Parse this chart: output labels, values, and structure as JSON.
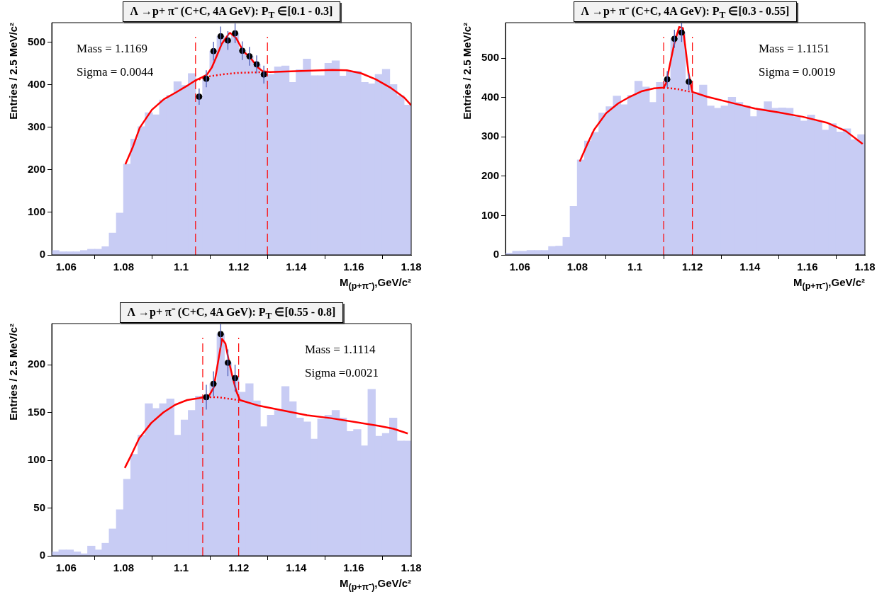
{
  "chart_data": [
    {
      "type": "histogram",
      "title": "Λ →p+  π⁻ (C+C, 4A GeV):  P$_{T}$ ∈[0.1 - 0.3]",
      "xlabel": "M$_{(p+π⁻)}$,GeV/c²",
      "ylabel": "Entries / 2.5 MeV/c²",
      "bins": [
        1.055,
        1.0575,
        1.06,
        1.0625,
        1.065,
        1.0675,
        1.07,
        1.0725,
        1.075,
        1.0775,
        1.08,
        1.0825,
        1.085,
        1.0875,
        1.09,
        1.0925,
        1.095,
        1.0975,
        1.1,
        1.1025,
        1.105,
        1.1075,
        1.11,
        1.1125,
        1.115,
        1.1175,
        1.12,
        1.1225,
        1.125,
        1.1275,
        1.13,
        1.1325,
        1.135,
        1.1375,
        1.14,
        1.1425,
        1.145,
        1.1475,
        1.15,
        1.1525,
        1.155,
        1.1575,
        1.16,
        1.1625,
        1.165,
        1.1675,
        1.17,
        1.1725,
        1.175,
        1.1775,
        1.18
      ],
      "values": [
        10,
        7,
        7,
        7,
        10,
        13,
        13,
        19,
        51,
        98,
        213,
        272,
        301,
        334,
        329,
        364,
        375,
        407,
        398,
        426,
        372,
        414,
        479,
        514,
        504,
        521,
        480,
        467,
        448,
        424,
        424,
        442,
        444,
        405,
        435,
        460,
        421,
        421,
        450,
        456,
        420,
        432,
        432,
        405,
        402,
        424,
        436,
        400,
        374,
        352
      ],
      "color": "#c8ccf4",
      "series": [
        {
          "type": "scatter",
          "color": "#000000",
          "marker": "circle",
          "x": [
            1.10625,
            1.10875,
            1.11125,
            1.11375,
            1.11625,
            1.11875,
            1.12125,
            1.12375,
            1.12625,
            1.12875
          ],
          "values": [
            372,
            414,
            479,
            514,
            504,
            521,
            480,
            467,
            448,
            424
          ],
          "errors": [
            19,
            20,
            22,
            23,
            22,
            23,
            22,
            22,
            21,
            21
          ]
        },
        {
          "type": "line",
          "color": "#ff0000",
          "line_style": "solid",
          "x": [
            1.0806,
            1.0831,
            1.0856,
            1.0898,
            1.094,
            1.0982,
            1.1024,
            1.1049,
            1.1074,
            1.109,
            1.1107,
            1.1124,
            1.1141,
            1.1166,
            1.117,
            1.1191,
            1.1216,
            1.1241,
            1.1266,
            1.1283,
            1.1308,
            1.14,
            1.1526,
            1.1576,
            1.1626,
            1.1676,
            1.1726,
            1.1777,
            1.18
          ],
          "values": [
            213,
            252,
            299,
            341,
            366,
            382,
            399,
            410,
            418,
            424,
            441,
            468,
            496,
            520,
            522,
            510,
            479,
            463,
            441,
            432,
            430,
            432,
            435,
            434,
            427,
            413,
            394,
            369,
            352
          ]
        },
        {
          "type": "line",
          "color": "#ff0000",
          "line_style": "dotted",
          "x": [
            1.105,
            1.11,
            1.115,
            1.12,
            1.125,
            1.13
          ],
          "values": [
            410,
            420,
            425,
            428,
            429,
            430
          ]
        }
      ],
      "ref_lines": [
        {
          "axis": "x",
          "value": 1.105,
          "color": "#ff0000",
          "line_style": "dashed"
        },
        {
          "axis": "x",
          "value": 1.13,
          "color": "#ff0000",
          "line_style": "dashed"
        }
      ],
      "annotations": [
        "Mass = 1.1169",
        "Sigma = 0.0044"
      ],
      "xlim": [
        1.055,
        1.18
      ],
      "xticks": [
        1.06,
        1.08,
        1.1,
        1.12,
        1.14,
        1.16,
        1.18
      ],
      "ylim": [
        0,
        546
      ],
      "yticks": [
        0,
        100,
        200,
        300,
        400,
        500
      ]
    },
    {
      "type": "histogram",
      "title": "Λ →p+  π⁻ (C+C, 4A GeV):  P$_{T}$ ∈[0.3 - 0.55]",
      "xlabel": "M$_{(p+π⁻)}$,GeV/c²",
      "ylabel": "Entries / 2.5 MeV/c²",
      "bins": [
        1.055,
        1.0575,
        1.06,
        1.0625,
        1.065,
        1.0675,
        1.07,
        1.0725,
        1.075,
        1.0775,
        1.08,
        1.0825,
        1.085,
        1.0875,
        1.09,
        1.0925,
        1.095,
        1.0975,
        1.1,
        1.1025,
        1.105,
        1.1075,
        1.11,
        1.1125,
        1.115,
        1.1175,
        1.12,
        1.1225,
        1.125,
        1.1275,
        1.13,
        1.1325,
        1.135,
        1.1375,
        1.14,
        1.1425,
        1.145,
        1.1475,
        1.15,
        1.1525,
        1.155,
        1.1575,
        1.16,
        1.1625,
        1.165,
        1.1675,
        1.17,
        1.1725,
        1.175,
        1.1775,
        1.18
      ],
      "values": [
        4,
        9,
        9,
        11,
        11,
        11,
        21,
        22,
        44,
        123,
        241,
        289,
        311,
        360,
        376,
        403,
        381,
        405,
        441,
        426,
        387,
        438,
        446,
        549,
        565,
        440,
        412,
        431,
        378,
        372,
        378,
        400,
        387,
        378,
        351,
        371,
        389,
        372,
        373,
        372,
        351,
        340,
        355,
        339,
        317,
        333,
        312,
        320,
        292,
        305
      ],
      "color": "#c8ccf4",
      "series": [
        {
          "type": "scatter",
          "color": "#000000",
          "marker": "circle",
          "x": [
            1.11125,
            1.11375,
            1.11625,
            1.11875
          ],
          "values": [
            446,
            549,
            565,
            440
          ],
          "errors": [
            21,
            23,
            24,
            21
          ]
        },
        {
          "type": "line",
          "color": "#ff0000",
          "line_style": "solid",
          "x": [
            1.0808,
            1.0833,
            1.0858,
            1.09,
            1.0942,
            1.0983,
            1.1025,
            1.1067,
            1.11,
            1.1108,
            1.1125,
            1.1137,
            1.1154,
            1.1167,
            1.1175,
            1.1187,
            1.12,
            1.125,
            1.1333,
            1.1417,
            1.15,
            1.1583,
            1.1667,
            1.1733,
            1.1792
          ],
          "values": [
            237,
            279,
            318,
            360,
            385,
            402,
            416,
            423,
            425,
            435,
            495,
            537,
            579,
            576,
            531,
            459,
            414,
            402,
            387,
            372,
            362,
            351,
            336,
            315,
            282
          ]
        },
        {
          "type": "line",
          "color": "#ff0000",
          "line_style": "dotted",
          "x": [
            1.11,
            1.1125,
            1.115,
            1.1175,
            1.12
          ],
          "values": [
            425,
            423,
            421,
            417,
            414
          ]
        }
      ],
      "ref_lines": [
        {
          "axis": "x",
          "value": 1.11,
          "color": "#ff0000",
          "line_style": "dashed"
        },
        {
          "axis": "x",
          "value": 1.12,
          "color": "#ff0000",
          "line_style": "dashed"
        }
      ],
      "annotations": [
        "Mass = 1.1151",
        "Sigma = 0.0019"
      ],
      "xlim": [
        1.055,
        1.18
      ],
      "xticks": [
        1.06,
        1.08,
        1.1,
        1.12,
        1.14,
        1.16,
        1.18
      ],
      "ylim": [
        0,
        590
      ],
      "yticks": [
        0,
        100,
        200,
        300,
        400,
        500
      ]
    },
    {
      "type": "histogram",
      "title": "Λ →p+  π⁻ (C+C, 4A GeV):  P$_{T}$ ∈[0.55 - 0.8]",
      "xlabel": "M$_{(p+π⁻)}$,GeV/c²",
      "ylabel": "Entries / 2.5 MeV/c²",
      "bins": [
        1.055,
        1.0575,
        1.06,
        1.0625,
        1.065,
        1.0675,
        1.07,
        1.0725,
        1.075,
        1.0775,
        1.08,
        1.0825,
        1.085,
        1.0875,
        1.09,
        1.0925,
        1.095,
        1.0975,
        1.1,
        1.1025,
        1.105,
        1.1075,
        1.11,
        1.1125,
        1.115,
        1.1175,
        1.12,
        1.1225,
        1.125,
        1.1275,
        1.13,
        1.1325,
        1.135,
        1.1375,
        1.14,
        1.1425,
        1.145,
        1.1475,
        1.15,
        1.1525,
        1.155,
        1.1575,
        1.16,
        1.1625,
        1.165,
        1.1675,
        1.17,
        1.1725,
        1.175,
        1.1775,
        1.18
      ],
      "values": [
        4,
        6,
        6,
        4,
        2,
        10,
        6,
        13,
        28,
        48,
        80,
        106,
        126,
        159,
        154,
        159,
        164,
        126,
        142,
        152,
        167,
        166,
        180,
        232,
        202,
        186,
        171,
        180,
        162,
        135,
        147,
        152,
        177,
        161,
        144,
        140,
        122,
        143,
        147,
        152,
        144,
        130,
        132,
        115,
        174,
        125,
        128,
        144,
        120,
        120
      ],
      "color": "#c8ccf4",
      "series": [
        {
          "type": "scatter",
          "color": "#000000",
          "marker": "circle",
          "x": [
            1.10875,
            1.11125,
            1.11375,
            1.11625,
            1.11875
          ],
          "values": [
            166,
            180,
            232,
            202,
            186
          ],
          "errors": [
            13,
            13,
            15,
            14,
            14
          ]
        },
        {
          "type": "line",
          "color": "#ff0000",
          "line_style": "solid",
          "x": [
            1.0804,
            1.0829,
            1.0854,
            1.0896,
            1.0938,
            1.0979,
            1.1021,
            1.1063,
            1.1096,
            1.1113,
            1.1129,
            1.1142,
            1.1154,
            1.1167,
            1.1179,
            1.1192,
            1.1204,
            1.1271,
            1.1354,
            1.1438,
            1.1521,
            1.1604,
            1.1688,
            1.1738,
            1.1788
          ],
          "values": [
            92,
            107,
            123,
            139,
            150,
            158,
            163,
            165,
            167,
            176,
            204,
            227,
            222,
            202,
            187,
            172,
            163,
            157,
            152,
            147,
            144,
            140,
            136,
            133,
            128
          ]
        },
        {
          "type": "line",
          "color": "#ff0000",
          "line_style": "dotted",
          "x": [
            1.1075,
            1.11,
            1.1125,
            1.115,
            1.1175,
            1.12
          ],
          "values": [
            166,
            166,
            166,
            165,
            164,
            163
          ]
        }
      ],
      "ref_lines": [
        {
          "axis": "x",
          "value": 1.1075,
          "color": "#ff0000",
          "line_style": "dashed"
        },
        {
          "axis": "x",
          "value": 1.12,
          "color": "#ff0000",
          "line_style": "dashed"
        }
      ],
      "annotations": [
        "Mass = 1.1114",
        "Sigma =0.0021"
      ],
      "xlim": [
        1.055,
        1.18
      ],
      "xticks": [
        1.06,
        1.08,
        1.1,
        1.12,
        1.14,
        1.16,
        1.18
      ],
      "ylim": [
        0,
        243
      ],
      "yticks": [
        0,
        50,
        100,
        150,
        200
      ]
    }
  ]
}
